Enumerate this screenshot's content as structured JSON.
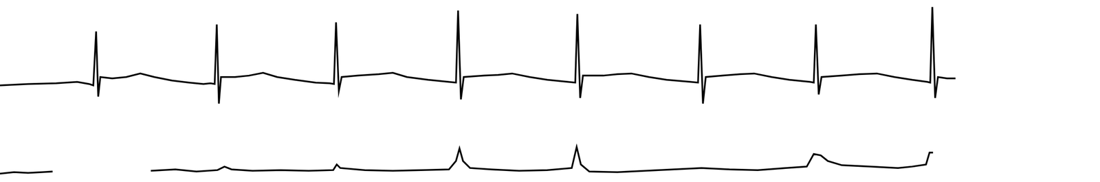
{
  "chart_data": {
    "type": "line",
    "xlim": [
      0,
      1568
    ],
    "ylim": [
      0,
      260
    ],
    "grid": false,
    "tick_labels": false,
    "series": [
      {
        "color": "#000000",
        "x": [
          0,
          40,
          80,
          110,
          127,
          133,
          137,
          140,
          143,
          160,
          180,
          200,
          220,
          245,
          270,
          290,
          300,
          306,
          309,
          312,
          315,
          335,
          355,
          375,
          395,
          420,
          450,
          470,
          476,
          479,
          483,
          487,
          510,
          540,
          560,
          580,
          610,
          640,
          650,
          653,
          657,
          661,
          690,
          710,
          730,
          755,
          780,
          810,
          820,
          823,
          827,
          831,
          860,
          880,
          900,
          925,
          950,
          985,
          995,
          998,
          1002,
          1006,
          1030,
          1055,
          1075,
          1100,
          1125,
          1155,
          1160,
          1163,
          1167,
          1171,
          1200,
          1225,
          1250,
          1275,
          1300,
          1322,
          1326,
          1329,
          1333,
          1337,
          1350,
          1362
        ],
        "values": [
          138,
          140,
          141,
          143,
          140,
          138,
          215,
          122,
          150,
          148,
          150,
          155,
          150,
          145,
          142,
          140,
          141,
          140,
          225,
          112,
          150,
          150,
          152,
          156,
          150,
          146,
          142,
          141,
          140,
          228,
          130,
          150,
          152,
          154,
          156,
          150,
          146,
          143,
          142,
          245,
          118,
          150,
          152,
          153,
          155,
          150,
          146,
          143,
          142,
          240,
          120,
          152,
          152,
          154,
          155,
          150,
          146,
          143,
          142,
          225,
          112,
          150,
          152,
          154,
          155,
          150,
          146,
          143,
          142,
          225,
          125,
          150,
          152,
          154,
          155,
          150,
          146,
          143,
          142,
          250,
          120,
          150,
          148,
          148
        ]
      },
      {
        "color": "#000000",
        "x": [
          0,
          20,
          40,
          60,
          75,
          140,
          215,
          250,
          280,
          310,
          320,
          330,
          360,
          400,
          440,
          475,
          480,
          485,
          520,
          560,
          600,
          640,
          650,
          655,
          660,
          670,
          700,
          740,
          780,
          815,
          822,
          828,
          840,
          880,
          920,
          960,
          1000,
          1040,
          1080,
          1120,
          1150,
          1160,
          1170,
          1180,
          1200,
          1240,
          1280,
          1300,
          1320,
          1325,
          1330
        ],
        "values": [
          12,
          14,
          13,
          14,
          15,
          null,
          16,
          18,
          15,
          17,
          22,
          18,
          16,
          17,
          16,
          17,
          25,
          20,
          17,
          16,
          17,
          18,
          30,
          48,
          30,
          20,
          18,
          16,
          17,
          20,
          50,
          25,
          15,
          14,
          16,
          18,
          20,
          18,
          17,
          20,
          22,
          40,
          38,
          30,
          24,
          22,
          20,
          22,
          25,
          42,
          42
        ]
      }
    ]
  }
}
